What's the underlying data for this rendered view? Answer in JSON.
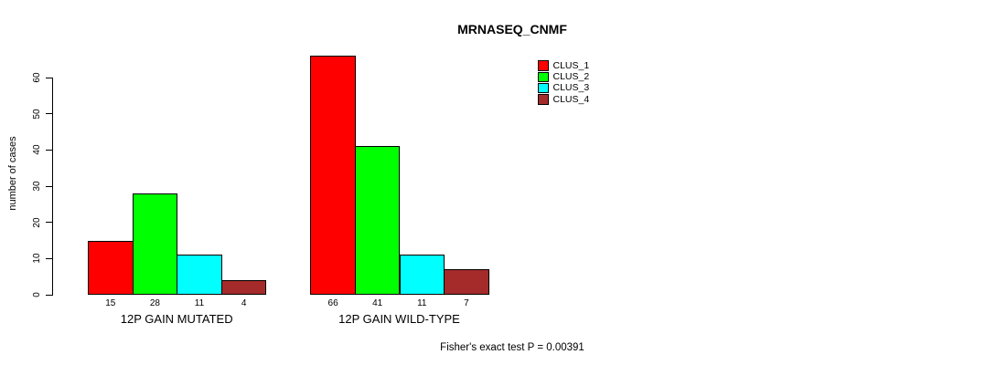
{
  "chart_data": {
    "type": "bar",
    "title": "MRNASEQ_CNMF",
    "ylabel": "number of cases",
    "footer_note": "Fisher's exact test P = 0.00391",
    "categories": [
      "12P GAIN MUTATED",
      "12P GAIN WILD-TYPE"
    ],
    "series": [
      {
        "name": "CLUS_1",
        "color": "#ff0000",
        "values": [
          15,
          66
        ]
      },
      {
        "name": "CLUS_2",
        "color": "#00ff00",
        "values": [
          28,
          41
        ]
      },
      {
        "name": "CLUS_3",
        "color": "#00ffff",
        "values": [
          11,
          11
        ]
      },
      {
        "name": "CLUS_4",
        "color": "#a52a2a",
        "values": [
          4,
          7
        ]
      }
    ],
    "y_ticks": [
      0,
      10,
      20,
      30,
      40,
      50,
      60
    ],
    "ylim": [
      0,
      60
    ],
    "grid": false,
    "legend_position": "top-right",
    "bar_border_color": "#000000",
    "background_color": "#ffffff",
    "axis_color": "#000000"
  }
}
